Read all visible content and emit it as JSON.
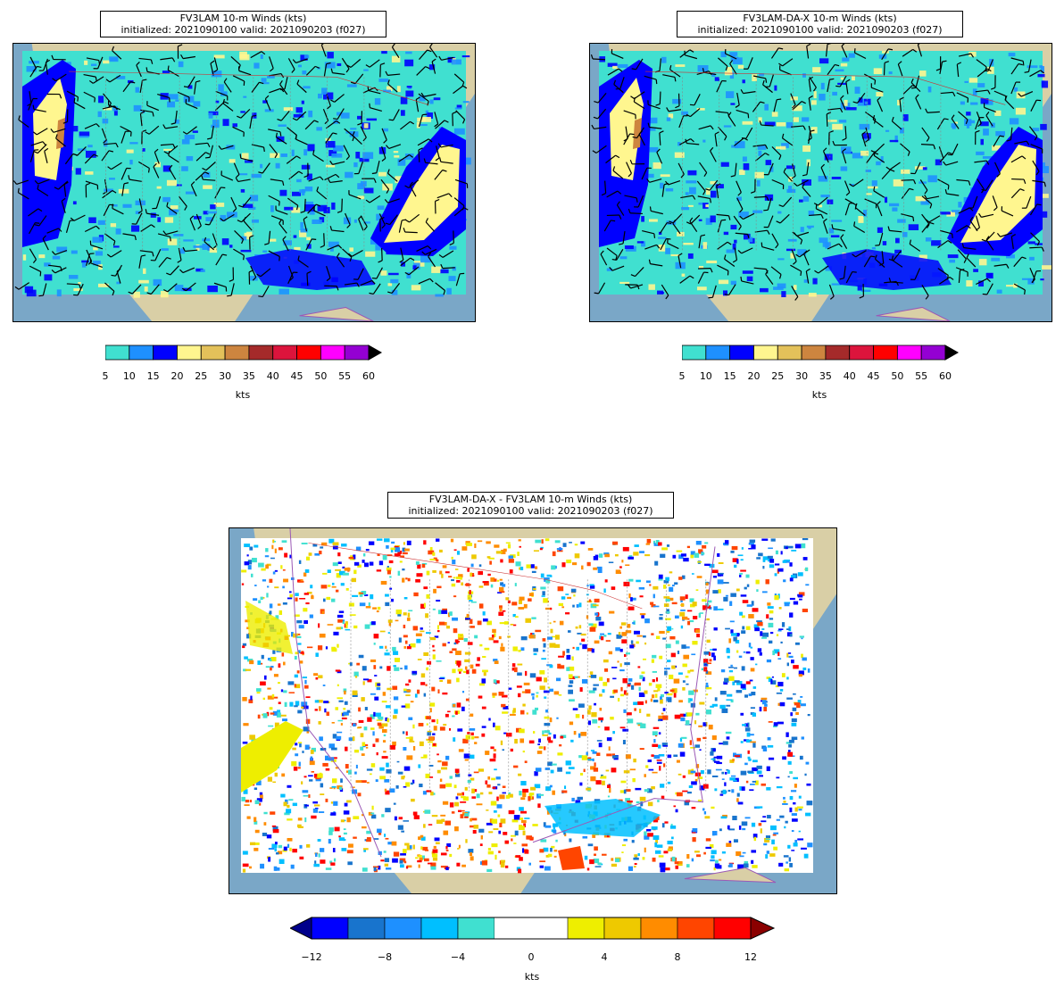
{
  "panels": [
    {
      "id": "fv3lam",
      "title_line1": "FV3LAM 10-m Winds (kts)",
      "title_line2": "initialized: 2021090100 valid: 2021090203 (f027)",
      "colorbar": {
        "ticks": [
          "5",
          "10",
          "15",
          "20",
          "25",
          "30",
          "35",
          "40",
          "45",
          "50",
          "55",
          "60"
        ],
        "colors": [
          "#40e0d0",
          "#1e90ff",
          "#0000ff",
          "#fff68f",
          "#e3c15a",
          "#cd853f",
          "#a52a2a",
          "#dc143c",
          "#ff0000",
          "#ff00ff",
          "#9400d3"
        ],
        "extend_color": "#000000",
        "units": "kts"
      }
    },
    {
      "id": "fv3lam-da-x",
      "title_line1": "FV3LAM-DA-X 10-m Winds (kts)",
      "title_line2": "initialized: 2021090100 valid: 2021090203 (f027)",
      "colorbar": {
        "ticks": [
          "5",
          "10",
          "15",
          "20",
          "25",
          "30",
          "35",
          "40",
          "45",
          "50",
          "55",
          "60"
        ],
        "colors": [
          "#40e0d0",
          "#1e90ff",
          "#0000ff",
          "#fff68f",
          "#e3c15a",
          "#cd853f",
          "#a52a2a",
          "#dc143c",
          "#ff0000",
          "#ff00ff",
          "#9400d3"
        ],
        "extend_color": "#000000",
        "units": "kts"
      }
    },
    {
      "id": "difference",
      "title_line1": "FV3LAM-DA-X - FV3LAM 10-m Winds (kts)",
      "title_line2": "initialized: 2021090100 valid: 2021090203 (f027)",
      "colorbar": {
        "ticks": [
          "−12",
          "−8",
          "−4",
          "0",
          "4",
          "8",
          "12"
        ],
        "colors": [
          "#0000ff",
          "#1874cd",
          "#1e90ff",
          "#00bfff",
          "#40e0d0",
          "#ffffff",
          "#ffffff",
          "#eeee00",
          "#eec900",
          "#ff8c00",
          "#ff4500",
          "#ff0000"
        ],
        "under_color": "#00008b",
        "over_color": "#8b0000",
        "units": "kts"
      }
    }
  ],
  "map_colors": {
    "ocean": "#7aa7c7",
    "land": "#d9cfa6",
    "state_lines": "#888888",
    "coast_lines": "#9b59b6",
    "border_line": "#cc3333"
  }
}
